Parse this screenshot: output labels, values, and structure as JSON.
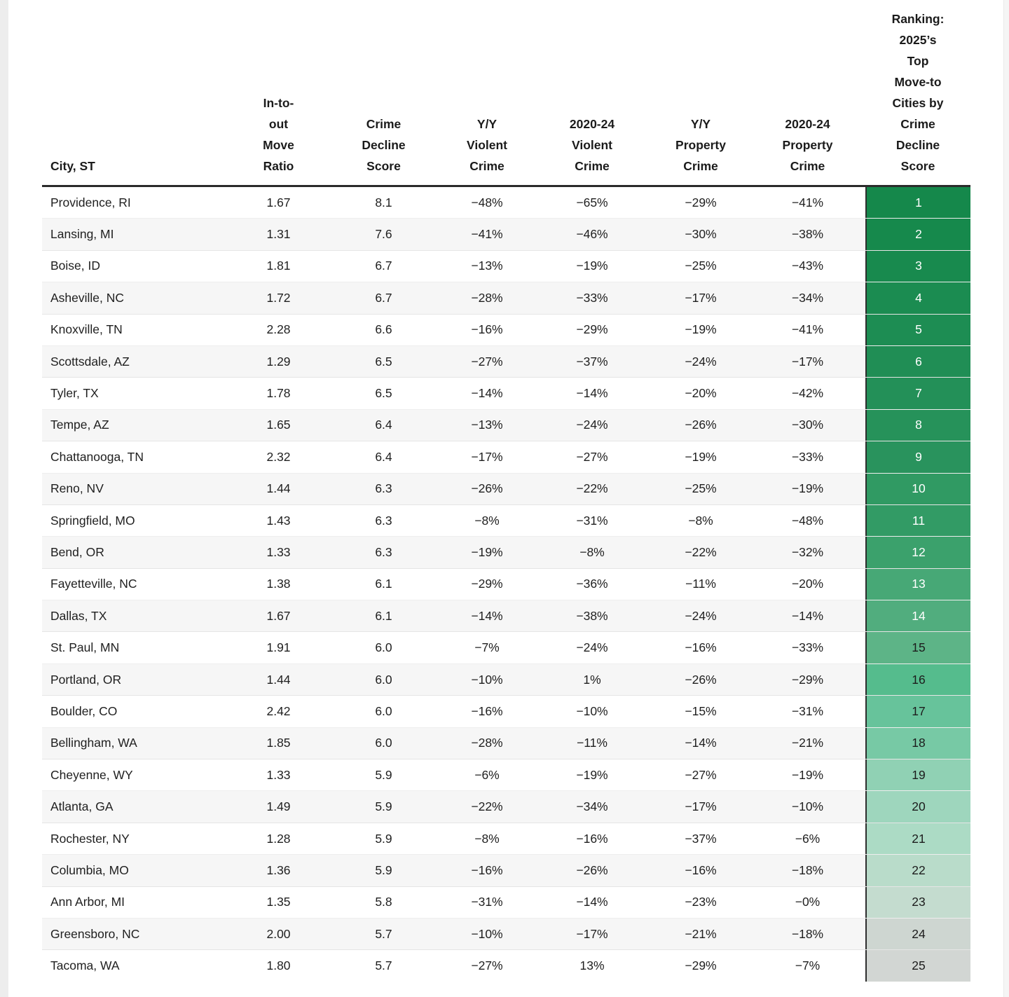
{
  "table": {
    "columns": [
      {
        "id": "city",
        "label": "City, ST"
      },
      {
        "id": "move_ratio",
        "label": "In-to-\nout\nMove\nRatio"
      },
      {
        "id": "crime_decline_score",
        "label": "Crime\nDecline\nScore"
      },
      {
        "id": "yy_violent",
        "label": "Y/Y\nViolent\nCrime"
      },
      {
        "id": "violent_2020_24",
        "label": "2020-24\nViolent\nCrime"
      },
      {
        "id": "yy_property",
        "label": "Y/Y\nProperty\nCrime"
      },
      {
        "id": "property_2020_24",
        "label": "2020-24\nProperty\nCrime"
      },
      {
        "id": "rank",
        "label": "Ranking:\n2025’s\nTop\nMove-to\nCities by\nCrime\nDecline\nScore"
      }
    ],
    "colors": {
      "header_rule": "#2b2b2b",
      "row_alt_bg": "#f6f6f6",
      "rank_divider": "#2e2e2e",
      "rank_text_light": "#ffffff",
      "rank_text_dark": "#1c1c1c"
    },
    "rows": [
      {
        "city": "Providence, RI",
        "move_ratio": "1.67",
        "crime_decline_score": "8.1",
        "yy_violent": "−48%",
        "violent_2020_24": "−65%",
        "yy_property": "−29%",
        "property_2020_24": "−41%",
        "rank": "1",
        "rank_bg": "#15884b",
        "rank_fg": "#ffffff"
      },
      {
        "city": "Lansing, MI",
        "move_ratio": "1.31",
        "crime_decline_score": "7.6",
        "yy_violent": "−41%",
        "violent_2020_24": "−46%",
        "yy_property": "−30%",
        "property_2020_24": "−38%",
        "rank": "2",
        "rank_bg": "#16894c",
        "rank_fg": "#ffffff"
      },
      {
        "city": "Boise, ID",
        "move_ratio": "1.81",
        "crime_decline_score": "6.7",
        "yy_violent": "−13%",
        "violent_2020_24": "−19%",
        "yy_property": "−25%",
        "property_2020_24": "−43%",
        "rank": "3",
        "rank_bg": "#188a4e",
        "rank_fg": "#ffffff"
      },
      {
        "city": "Asheville, NC",
        "move_ratio": "1.72",
        "crime_decline_score": "6.7",
        "yy_violent": "−28%",
        "violent_2020_24": "−33%",
        "yy_property": "−17%",
        "property_2020_24": "−34%",
        "rank": "4",
        "rank_bg": "#1b8c51",
        "rank_fg": "#ffffff"
      },
      {
        "city": "Knoxville, TN",
        "move_ratio": "2.28",
        "crime_decline_score": "6.6",
        "yy_violent": "−16%",
        "violent_2020_24": "−29%",
        "yy_property": "−19%",
        "property_2020_24": "−41%",
        "rank": "5",
        "rank_bg": "#1d8d53",
        "rank_fg": "#ffffff"
      },
      {
        "city": "Scottsdale, AZ",
        "move_ratio": "1.29",
        "crime_decline_score": "6.5",
        "yy_violent": "−27%",
        "violent_2020_24": "−37%",
        "yy_property": "−24%",
        "property_2020_24": "−17%",
        "rank": "6",
        "rank_bg": "#208e55",
        "rank_fg": "#ffffff"
      },
      {
        "city": "Tyler, TX",
        "move_ratio": "1.78",
        "crime_decline_score": "6.5",
        "yy_violent": "−14%",
        "violent_2020_24": "−14%",
        "yy_property": "−20%",
        "property_2020_24": "−42%",
        "rank": "7",
        "rank_bg": "#239058",
        "rank_fg": "#ffffff"
      },
      {
        "city": "Tempe, AZ",
        "move_ratio": "1.65",
        "crime_decline_score": "6.4",
        "yy_violent": "−13%",
        "violent_2020_24": "−24%",
        "yy_property": "−26%",
        "property_2020_24": "−30%",
        "rank": "8",
        "rank_bg": "#26925a",
        "rank_fg": "#ffffff"
      },
      {
        "city": "Chattanooga, TN",
        "move_ratio": "2.32",
        "crime_decline_score": "6.4",
        "yy_violent": "−17%",
        "violent_2020_24": "−27%",
        "yy_property": "−19%",
        "property_2020_24": "−33%",
        "rank": "9",
        "rank_bg": "#29935d",
        "rank_fg": "#ffffff"
      },
      {
        "city": "Reno, NV",
        "move_ratio": "1.44",
        "crime_decline_score": "6.3",
        "yy_violent": "−26%",
        "violent_2020_24": "−22%",
        "yy_property": "−25%",
        "property_2020_24": "−19%",
        "rank": "10",
        "rank_bg": "#309a63",
        "rank_fg": "#ffffff"
      },
      {
        "city": "Springfield, MO",
        "move_ratio": "1.43",
        "crime_decline_score": "6.3",
        "yy_violent": "−8%",
        "violent_2020_24": "−31%",
        "yy_property": "−8%",
        "property_2020_24": "−48%",
        "rank": "11",
        "rank_bg": "#329b65",
        "rank_fg": "#ffffff"
      },
      {
        "city": "Bend, OR",
        "move_ratio": "1.33",
        "crime_decline_score": "6.3",
        "yy_violent": "−19%",
        "violent_2020_24": "−8%",
        "yy_property": "−22%",
        "property_2020_24": "−32%",
        "rank": "12",
        "rank_bg": "#3ba16c",
        "rank_fg": "#ffffff"
      },
      {
        "city": "Fayetteville, NC",
        "move_ratio": "1.38",
        "crime_decline_score": "6.1",
        "yy_violent": "−29%",
        "violent_2020_24": "−36%",
        "yy_property": "−11%",
        "property_2020_24": "−20%",
        "rank": "13",
        "rank_bg": "#47a876",
        "rank_fg": "#ffffff"
      },
      {
        "city": "Dallas, TX",
        "move_ratio": "1.67",
        "crime_decline_score": "6.1",
        "yy_violent": "−14%",
        "violent_2020_24": "−38%",
        "yy_property": "−24%",
        "property_2020_24": "−14%",
        "rank": "14",
        "rank_bg": "#51ad7e",
        "rank_fg": "#ffffff"
      },
      {
        "city": "St. Paul, MN",
        "move_ratio": "1.91",
        "crime_decline_score": "6.0",
        "yy_violent": "−7%",
        "violent_2020_24": "−24%",
        "yy_property": "−16%",
        "property_2020_24": "−33%",
        "rank": "15",
        "rank_bg": "#5db487",
        "rank_fg": "#1c1c1c"
      },
      {
        "city": "Portland, OR",
        "move_ratio": "1.44",
        "crime_decline_score": "6.0",
        "yy_violent": "−10%",
        "violent_2020_24": "1%",
        "yy_property": "−26%",
        "property_2020_24": "−29%",
        "rank": "16",
        "rank_bg": "#55bc8d",
        "rank_fg": "#1c1c1c"
      },
      {
        "city": "Boulder, CO",
        "move_ratio": "2.42",
        "crime_decline_score": "6.0",
        "yy_violent": "−16%",
        "violent_2020_24": "−10%",
        "yy_property": "−15%",
        "property_2020_24": "−31%",
        "rank": "17",
        "rank_bg": "#67c39b",
        "rank_fg": "#1c1c1c"
      },
      {
        "city": "Bellingham, WA",
        "move_ratio": "1.85",
        "crime_decline_score": "6.0",
        "yy_violent": "−28%",
        "violent_2020_24": "−11%",
        "yy_property": "−14%",
        "property_2020_24": "−21%",
        "rank": "18",
        "rank_bg": "#77c9a5",
        "rank_fg": "#1c1c1c"
      },
      {
        "city": "Cheyenne, WY",
        "move_ratio": "1.33",
        "crime_decline_score": "5.9",
        "yy_violent": "−6%",
        "violent_2020_24": "−19%",
        "yy_property": "−27%",
        "property_2020_24": "−19%",
        "rank": "19",
        "rank_bg": "#90d1b4",
        "rank_fg": "#1c1c1c"
      },
      {
        "city": "Atlanta, GA",
        "move_ratio": "1.49",
        "crime_decline_score": "5.9",
        "yy_violent": "−22%",
        "violent_2020_24": "−34%",
        "yy_property": "−17%",
        "property_2020_24": "−10%",
        "rank": "20",
        "rank_bg": "#9ed6bd",
        "rank_fg": "#1c1c1c"
      },
      {
        "city": "Rochester, NY",
        "move_ratio": "1.28",
        "crime_decline_score": "5.9",
        "yy_violent": "−8%",
        "violent_2020_24": "−16%",
        "yy_property": "−37%",
        "property_2020_24": "−6%",
        "rank": "21",
        "rank_bg": "#acdbc5",
        "rank_fg": "#1c1c1c"
      },
      {
        "city": "Columbia, MO",
        "move_ratio": "1.36",
        "crime_decline_score": "5.9",
        "yy_violent": "−16%",
        "violent_2020_24": "−26%",
        "yy_property": "−16%",
        "property_2020_24": "−18%",
        "rank": "22",
        "rank_bg": "#b9dcca",
        "rank_fg": "#1c1c1c"
      },
      {
        "city": "Ann Arbor, MI",
        "move_ratio": "1.35",
        "crime_decline_score": "5.8",
        "yy_violent": "−31%",
        "violent_2020_24": "−14%",
        "yy_property": "−23%",
        "property_2020_24": "−0%",
        "rank": "23",
        "rank_bg": "#c4dccf",
        "rank_fg": "#1c1c1c"
      },
      {
        "city": "Greensboro, NC",
        "move_ratio": "2.00",
        "crime_decline_score": "5.7",
        "yy_violent": "−10%",
        "violent_2020_24": "−17%",
        "yy_property": "−21%",
        "property_2020_24": "−18%",
        "rank": "24",
        "rank_bg": "#ced6d1",
        "rank_fg": "#1c1c1c"
      },
      {
        "city": "Tacoma, WA",
        "move_ratio": "1.80",
        "crime_decline_score": "5.7",
        "yy_violent": "−27%",
        "violent_2020_24": "13%",
        "yy_property": "−29%",
        "property_2020_24": "−7%",
        "rank": "25",
        "rank_bg": "#d2d6d3",
        "rank_fg": "#1c1c1c"
      }
    ]
  },
  "chart_data": {
    "type": "table",
    "title": "Ranking: 2025's Top Move-to Cities by Crime Decline Score",
    "columns": [
      "City, ST",
      "In-to-out Move Ratio",
      "Crime Decline Score",
      "Y/Y Violent Crime (%)",
      "2020-24 Violent Crime (%)",
      "Y/Y Property Crime (%)",
      "2020-24 Property Crime (%)",
      "Ranking"
    ],
    "rows": [
      [
        "Providence, RI",
        1.67,
        8.1,
        -48,
        -65,
        -29,
        -41,
        1
      ],
      [
        "Lansing, MI",
        1.31,
        7.6,
        -41,
        -46,
        -30,
        -38,
        2
      ],
      [
        "Boise, ID",
        1.81,
        6.7,
        -13,
        -19,
        -25,
        -43,
        3
      ],
      [
        "Asheville, NC",
        1.72,
        6.7,
        -28,
        -33,
        -17,
        -34,
        4
      ],
      [
        "Knoxville, TN",
        2.28,
        6.6,
        -16,
        -29,
        -19,
        -41,
        5
      ],
      [
        "Scottsdale, AZ",
        1.29,
        6.5,
        -27,
        -37,
        -24,
        -17,
        6
      ],
      [
        "Tyler, TX",
        1.78,
        6.5,
        -14,
        -14,
        -20,
        -42,
        7
      ],
      [
        "Tempe, AZ",
        1.65,
        6.4,
        -13,
        -24,
        -26,
        -30,
        8
      ],
      [
        "Chattanooga, TN",
        2.32,
        6.4,
        -17,
        -27,
        -19,
        -33,
        9
      ],
      [
        "Reno, NV",
        1.44,
        6.3,
        -26,
        -22,
        -25,
        -19,
        10
      ],
      [
        "Springfield, MO",
        1.43,
        6.3,
        -8,
        -31,
        -8,
        -48,
        11
      ],
      [
        "Bend, OR",
        1.33,
        6.3,
        -19,
        -8,
        -22,
        -32,
        12
      ],
      [
        "Fayetteville, NC",
        1.38,
        6.1,
        -29,
        -36,
        -11,
        -20,
        13
      ],
      [
        "Dallas, TX",
        1.67,
        6.1,
        -14,
        -38,
        -24,
        -14,
        14
      ],
      [
        "St. Paul, MN",
        1.91,
        6.0,
        -7,
        -24,
        -16,
        -33,
        15
      ],
      [
        "Portland, OR",
        1.44,
        6.0,
        -10,
        1,
        -26,
        -29,
        16
      ],
      [
        "Boulder, CO",
        2.42,
        6.0,
        -16,
        -10,
        -15,
        -31,
        17
      ],
      [
        "Bellingham, WA",
        1.85,
        6.0,
        -28,
        -11,
        -14,
        -21,
        18
      ],
      [
        "Cheyenne, WY",
        1.33,
        5.9,
        -6,
        -19,
        -27,
        -19,
        19
      ],
      [
        "Atlanta, GA",
        1.49,
        5.9,
        -22,
        -34,
        -17,
        -10,
        20
      ],
      [
        "Rochester, NY",
        1.28,
        5.9,
        -8,
        -16,
        -37,
        -6,
        21
      ],
      [
        "Columbia, MO",
        1.36,
        5.9,
        -16,
        -26,
        -16,
        -18,
        22
      ],
      [
        "Ann Arbor, MI",
        1.35,
        5.8,
        -31,
        -14,
        -23,
        0,
        23
      ],
      [
        "Greensboro, NC",
        2.0,
        5.7,
        -10,
        -17,
        -21,
        -18,
        24
      ],
      [
        "Tacoma, WA",
        1.8,
        5.7,
        -27,
        13,
        -29,
        -7,
        25
      ]
    ],
    "layout_hints": {
      "rank_column_gradient": [
        "#15884b",
        "#d2d6d3"
      ],
      "alternating_row_stripes": true,
      "header_rule_color": "#2b2b2b"
    }
  }
}
